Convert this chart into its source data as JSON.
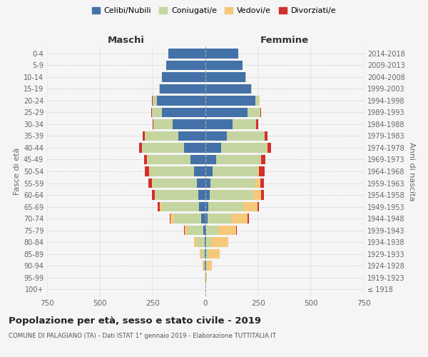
{
  "age_groups": [
    "100+",
    "95-99",
    "90-94",
    "85-89",
    "80-84",
    "75-79",
    "70-74",
    "65-69",
    "60-64",
    "55-59",
    "50-54",
    "45-49",
    "40-44",
    "35-39",
    "30-34",
    "25-29",
    "20-24",
    "15-19",
    "10-14",
    "5-9",
    "0-4"
  ],
  "birth_years": [
    "≤ 1918",
    "1919-1923",
    "1924-1928",
    "1929-1933",
    "1934-1938",
    "1939-1943",
    "1944-1948",
    "1949-1953",
    "1954-1958",
    "1959-1963",
    "1964-1968",
    "1969-1973",
    "1974-1978",
    "1979-1983",
    "1984-1988",
    "1989-1993",
    "1994-1998",
    "1999-2003",
    "2004-2008",
    "2009-2013",
    "2014-2018"
  ],
  "maschi": {
    "celibi": [
      0,
      0,
      2,
      2,
      5,
      10,
      20,
      30,
      35,
      40,
      55,
      70,
      100,
      130,
      155,
      205,
      230,
      215,
      205,
      185,
      175
    ],
    "coniugati": [
      0,
      2,
      5,
      15,
      35,
      75,
      130,
      175,
      200,
      210,
      210,
      205,
      200,
      155,
      90,
      50,
      20,
      5,
      2,
      0,
      0
    ],
    "vedovi": [
      0,
      0,
      5,
      10,
      15,
      12,
      15,
      10,
      5,
      3,
      2,
      1,
      1,
      1,
      1,
      0,
      1,
      0,
      0,
      0,
      0
    ],
    "divorziati": [
      0,
      0,
      0,
      0,
      0,
      5,
      5,
      10,
      15,
      18,
      20,
      15,
      12,
      10,
      5,
      3,
      2,
      0,
      0,
      0,
      0
    ]
  },
  "femmine": {
    "nubili": [
      0,
      0,
      2,
      2,
      3,
      5,
      10,
      15,
      20,
      25,
      35,
      50,
      75,
      100,
      130,
      200,
      235,
      215,
      190,
      175,
      155
    ],
    "coniugate": [
      0,
      2,
      5,
      10,
      25,
      55,
      110,
      165,
      205,
      210,
      210,
      210,
      215,
      180,
      110,
      60,
      20,
      5,
      2,
      0,
      0
    ],
    "vedove": [
      0,
      5,
      25,
      55,
      80,
      85,
      80,
      65,
      40,
      25,
      10,
      5,
      3,
      2,
      1,
      1,
      1,
      0,
      0,
      0,
      0
    ],
    "divorziate": [
      0,
      0,
      0,
      0,
      0,
      3,
      5,
      8,
      12,
      18,
      25,
      20,
      18,
      12,
      8,
      3,
      1,
      0,
      0,
      0,
      0
    ]
  },
  "colors": {
    "celibi": "#4472a8",
    "coniugati": "#c5d5a0",
    "vedovi": "#f5c87a",
    "divorziati": "#d03030"
  },
  "xlim": 750,
  "title": "Popolazione per età, sesso e stato civile - 2019",
  "subtitle": "COMUNE DI PALAGIANO (TA) - Dati ISTAT 1° gennaio 2019 - Elaborazione TUTTITALIA.IT",
  "ylabel_left": "Fasce di età",
  "ylabel_right": "Anni di nascita",
  "xlabel_left": "Maschi",
  "xlabel_right": "Femmine",
  "background_color": "#f5f5f5",
  "grid_color": "#cccccc"
}
